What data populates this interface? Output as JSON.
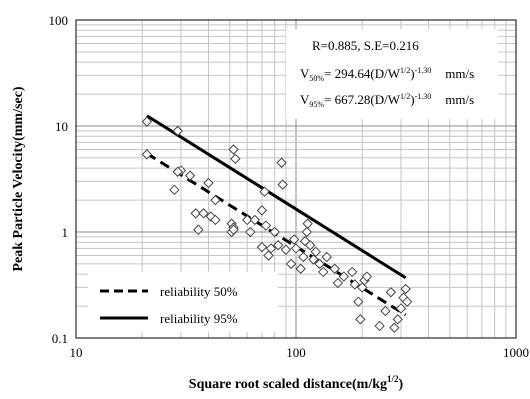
{
  "chart_data": {
    "type": "scatter",
    "title": "",
    "xlabel": "Square  root scaled distance(m/kg",
    "xlabel_sup": "1/2",
    "xlabel_tail": ")",
    "ylabel": "Peak Particle Velocity(mm/sec)",
    "x_scale": "log",
    "y_scale": "log",
    "xlim": [
      10,
      1000
    ],
    "ylim": [
      0.1,
      100
    ],
    "grid": true,
    "x_tick_labels": [
      "10",
      "100",
      "1000"
    ],
    "y_tick_labels": [
      "0.1",
      "1",
      "10",
      "100"
    ],
    "annotations": {
      "stats": "R=0.885,  S.E=0.216",
      "eq50_lead": "V",
      "eq50_sub": "50%",
      "eq50_mid": "= 294.64(D/W",
      "eq50_sup1": "1/2",
      "eq50_close": ")",
      "eq50_sup2": "-1.30",
      "eq50_unit": "mm/s",
      "eq95_lead": "V",
      "eq95_sub": "95%",
      "eq95_mid": "= 667.28(D/W",
      "eq95_sup1": "1/2",
      "eq95_close": ")",
      "eq95_sup2": "-1.30",
      "eq95_unit": "mm/s"
    },
    "legend_position": "bottom-left",
    "series": [
      {
        "name": "reliability   50%",
        "kind": "line",
        "style": "dashed",
        "x": [
          21,
          315
        ],
        "y": [
          5.5,
          0.165
        ]
      },
      {
        "name": "reliability   95%",
        "kind": "line",
        "style": "solid",
        "x": [
          21,
          315
        ],
        "y": [
          12.5,
          0.37
        ]
      },
      {
        "kind": "scatter",
        "marker": "diamond",
        "points": [
          [
            21,
            11
          ],
          [
            21,
            5.4
          ],
          [
            29,
            9
          ],
          [
            30,
            3.8
          ],
          [
            29,
            3.7
          ],
          [
            28,
            2.5
          ],
          [
            33,
            3.4
          ],
          [
            35,
            1.5
          ],
          [
            36,
            1.05
          ],
          [
            38,
            1.5
          ],
          [
            40,
            2.9
          ],
          [
            41,
            1.4
          ],
          [
            43,
            1.3
          ],
          [
            43,
            2.0
          ],
          [
            51,
            1.2
          ],
          [
            51,
            1.0
          ],
          [
            52,
            1.1
          ],
          [
            52,
            6.0
          ],
          [
            53,
            4.9
          ],
          [
            52,
            1.05
          ],
          [
            60,
            1.3
          ],
          [
            62,
            1.0
          ],
          [
            65,
            1.3
          ],
          [
            70,
            0.72
          ],
          [
            70,
            1.6
          ],
          [
            72,
            2.4
          ],
          [
            73,
            1.15
          ],
          [
            75,
            0.6
          ],
          [
            77,
            0.7
          ],
          [
            80,
            1.0
          ],
          [
            83,
            0.75
          ],
          [
            86,
            4.5
          ],
          [
            87,
            2.8
          ],
          [
            90,
            0.68
          ],
          [
            95,
            0.5
          ],
          [
            98,
            0.85
          ],
          [
            100,
            0.7
          ],
          [
            105,
            0.45
          ],
          [
            108,
            0.58
          ],
          [
            110,
            0.82
          ],
          [
            112,
            1.0
          ],
          [
            113,
            1.2
          ],
          [
            116,
            0.75
          ],
          [
            120,
            0.55
          ],
          [
            123,
            0.65
          ],
          [
            128,
            0.5
          ],
          [
            133,
            0.42
          ],
          [
            138,
            0.58
          ],
          [
            150,
            0.45
          ],
          [
            155,
            0.33
          ],
          [
            165,
            0.38
          ],
          [
            180,
            0.42
          ],
          [
            185,
            0.32
          ],
          [
            192,
            0.22
          ],
          [
            196,
            0.15
          ],
          [
            200,
            0.3
          ],
          [
            205,
            0.35
          ],
          [
            210,
            0.38
          ],
          [
            240,
            0.13
          ],
          [
            255,
            0.18
          ],
          [
            270,
            0.27
          ],
          [
            280,
            0.125
          ],
          [
            290,
            0.15
          ],
          [
            300,
            0.19
          ],
          [
            308,
            0.24
          ],
          [
            315,
            0.29
          ],
          [
            320,
            0.22
          ]
        ]
      }
    ]
  }
}
